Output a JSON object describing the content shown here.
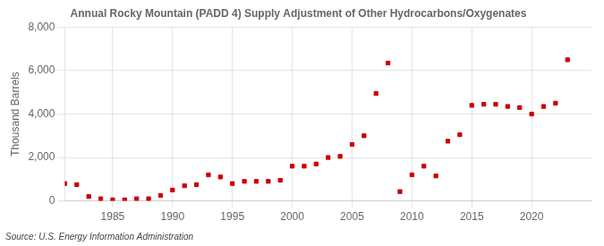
{
  "chart_data": {
    "type": "scatter",
    "title": "Annual Rocky Mountain (PADD 4) Supply Adjustment of Other Hydrocarbons/Oxygenates",
    "ylabel": "Thousand Barrels",
    "annotation": "Source: U.S. Energy Information Administration",
    "color": "#cc0000",
    "marker": "square",
    "grid": true,
    "xlim": [
      1981,
      2025
    ],
    "xticks": [
      1985,
      1990,
      1995,
      2000,
      2005,
      2010,
      2015,
      2020
    ],
    "ylim": [
      0,
      8000
    ],
    "yticks": [
      0,
      {
        "value": 2000,
        "label": "2,000"
      },
      {
        "value": 4000,
        "label": "4,000"
      },
      {
        "value": 6000,
        "label": "6,000"
      },
      {
        "value": 8000,
        "label": "8,000"
      }
    ],
    "x": [
      1981,
      1982,
      1983,
      1984,
      1985,
      1986,
      1987,
      1988,
      1989,
      1990,
      1991,
      1992,
      1993,
      1994,
      1995,
      1996,
      1997,
      1998,
      1999,
      2000,
      2001,
      2002,
      2003,
      2004,
      2005,
      2006,
      2007,
      2008,
      2009,
      2010,
      2011,
      2012,
      2013,
      2014,
      2015,
      2016,
      2017,
      2018,
      2019,
      2020,
      2021,
      2022,
      2023
    ],
    "values": [
      800,
      750,
      200,
      100,
      50,
      50,
      100,
      100,
      250,
      500,
      700,
      750,
      1200,
      1100,
      800,
      900,
      900,
      900,
      950,
      1600,
      1600,
      1700,
      2000,
      2050,
      2600,
      3000,
      4950,
      6350,
      430,
      1200,
      1600,
      1150,
      2750,
      3050,
      4400,
      4450,
      4450,
      4350,
      4300,
      4000,
      4350,
      4500,
      6500
    ]
  }
}
